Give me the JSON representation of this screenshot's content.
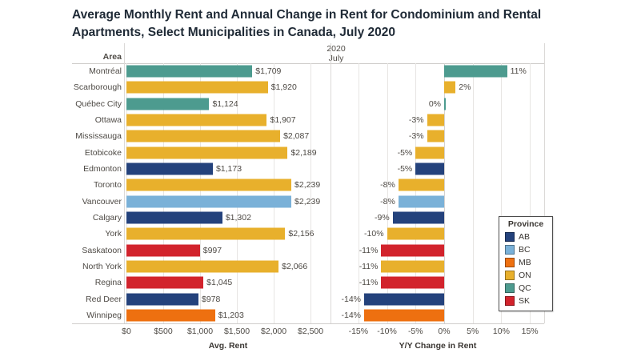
{
  "title": "Average Monthly Rent and Annual Change in Rent for Condominium and Rental Apartments, Select Municipalities in Canada, July 2020",
  "header": {
    "area_label": "Area",
    "year": "2020",
    "month": "July"
  },
  "axes": {
    "left_label": "Avg. Rent",
    "right_label": "Y/Y Change in Rent"
  },
  "legend": {
    "title": "Province",
    "items": [
      {
        "label": "AB",
        "color": "#24427c"
      },
      {
        "label": "BC",
        "color": "#7ab1d8"
      },
      {
        "label": "MB",
        "color": "#ee7010"
      },
      {
        "label": "ON",
        "color": "#e8b02c"
      },
      {
        "label": "QC",
        "color": "#4d9b8f"
      },
      {
        "label": "SK",
        "color": "#d2232c"
      }
    ]
  },
  "chart_data": {
    "type": "bar",
    "orientation": "horizontal",
    "title": "Average Monthly Rent and Annual Change in Rent for Condominium and Rental Apartments, Select Municipalities in Canada, July 2020",
    "period": "July 2020",
    "grid": true,
    "legend_position": "right-inside",
    "categories": [
      "Montréal",
      "Scarborough",
      "Québec City",
      "Ottawa",
      "Mississauga",
      "Etobicoke",
      "Edmonton",
      "Toronto",
      "Vancouver",
      "Calgary",
      "York",
      "Saskatoon",
      "North York",
      "Regina",
      "Red Deer",
      "Winnipeg"
    ],
    "provinces": [
      "QC",
      "ON",
      "QC",
      "ON",
      "ON",
      "ON",
      "AB",
      "ON",
      "BC",
      "AB",
      "ON",
      "SK",
      "ON",
      "SK",
      "AB",
      "MB"
    ],
    "colors": {
      "AB": "#24427c",
      "BC": "#7ab1d8",
      "MB": "#ee7010",
      "ON": "#e8b02c",
      "QC": "#4d9b8f",
      "SK": "#d2232c"
    },
    "series": [
      {
        "name": "Avg. Rent",
        "values": [
          1709,
          1920,
          1124,
          1907,
          2087,
          2189,
          1173,
          2239,
          2239,
          1302,
          2156,
          997,
          2066,
          1045,
          978,
          1203
        ],
        "labels": [
          "$1,709",
          "$1,920",
          "$1,124",
          "$1,907",
          "$2,087",
          "$2,189",
          "$1,173",
          "$2,239",
          "$2,239",
          "$1,302",
          "$2,156",
          "$997",
          "$2,066",
          "$1,045",
          "$978",
          "$1,203"
        ],
        "xlim": [
          0,
          2760
        ],
        "tick_values": [
          0,
          500,
          1000,
          1500,
          2000,
          2500
        ],
        "tick_labels": [
          "$0",
          "$500",
          "$1,000",
          "$1,500",
          "$2,000",
          "$2,500"
        ]
      },
      {
        "name": "Y/Y Change in Rent",
        "values": [
          11,
          2,
          0,
          -3,
          -3,
          -5,
          -5,
          -8,
          -8,
          -9,
          -10,
          -11,
          -11,
          -11,
          -14,
          -14
        ],
        "labels": [
          "11%",
          "2%",
          "0%",
          "-3%",
          "-3%",
          "-5%",
          "-5%",
          "-8%",
          "-8%",
          "-9%",
          "-10%",
          "-11%",
          "-11%",
          "-11%",
          "-14%",
          "-14%"
        ],
        "xlim": [
          -19.6,
          17.5
        ],
        "tick_values": [
          -15,
          -10,
          -5,
          0,
          5,
          10,
          15
        ],
        "tick_labels": [
          "-15%",
          "-10%",
          "-5%",
          "0%",
          "5%",
          "10%",
          "15%"
        ]
      }
    ]
  }
}
